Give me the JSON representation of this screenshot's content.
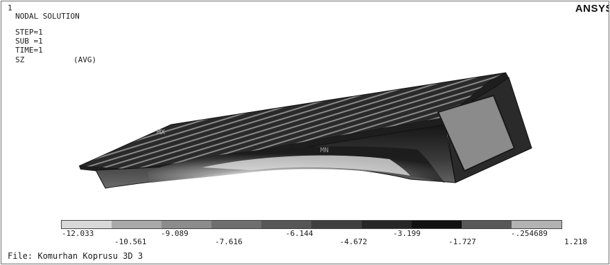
{
  "window": {
    "number": "1",
    "logo": "ANSYS"
  },
  "solution": {
    "title": "NODAL SOLUTION",
    "step": "STEP=1",
    "sub": "SUB =1",
    "time": "TIME=1",
    "component": "SZ",
    "mode": "(AVG)"
  },
  "markers": {
    "mx": "MX",
    "mn": "MN"
  },
  "legend": {
    "colors": [
      "#d8d8d8",
      "#a9a9a9",
      "#8c8c8c",
      "#6f6f6f",
      "#575757",
      "#3f3f3f",
      "#272727",
      "#101010",
      "#585858",
      "#b3b3b3"
    ],
    "upper_labels": [
      "-12.033",
      "-9.089",
      "-6.144",
      "-3.199",
      "-.254689"
    ],
    "lower_labels": [
      "-10.561",
      "-7.616",
      "-4.672",
      "-1.727",
      "1.218"
    ]
  },
  "file": {
    "label": "File: Komurhan Koprusu 3D 3"
  }
}
